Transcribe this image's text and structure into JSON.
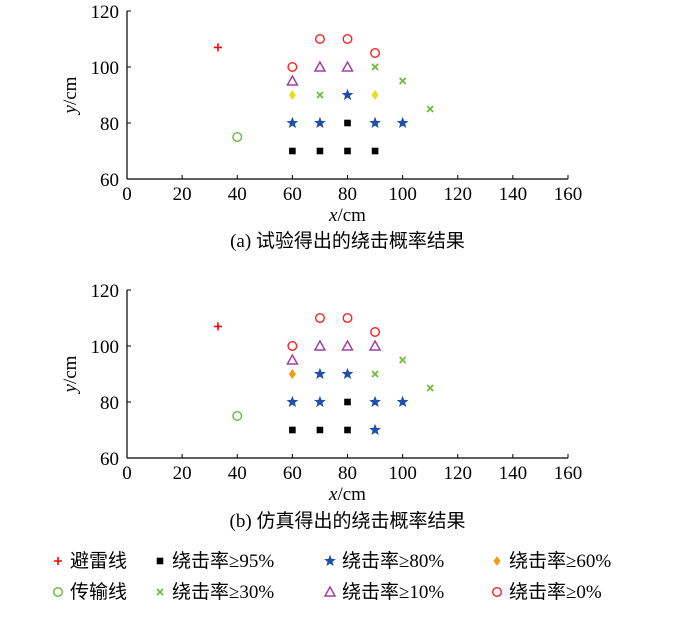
{
  "chart_data": [
    {
      "type": "scatter",
      "title": "(a)  试验得出的绕击概率结果",
      "xlabel": "x/cm",
      "ylabel": "y/cm",
      "xlim": [
        0,
        160
      ],
      "ylim": [
        60,
        120
      ],
      "xticks": [
        0,
        20,
        40,
        60,
        80,
        100,
        120,
        140,
        160
      ],
      "yticks": [
        60,
        80,
        100,
        120
      ],
      "series": [
        {
          "name": "避雷线",
          "marker": "plus",
          "color": "#ff0000",
          "points": [
            [
              33,
              107
            ]
          ]
        },
        {
          "name": "传输线",
          "marker": "circle",
          "color": "#66bb33",
          "points": [
            [
              40,
              75
            ]
          ]
        },
        {
          "name": "绕击率≥95%",
          "marker": "square",
          "color": "#000000",
          "points": [
            [
              60,
              70
            ],
            [
              70,
              70
            ],
            [
              80,
              70
            ],
            [
              90,
              70
            ],
            [
              80,
              80
            ]
          ]
        },
        {
          "name": "绕击率≥80%",
          "marker": "star",
          "color": "#1f4fa8",
          "points": [
            [
              60,
              80
            ],
            [
              70,
              80
            ],
            [
              90,
              80
            ],
            [
              100,
              80
            ],
            [
              80,
              90
            ]
          ]
        },
        {
          "name": "绕击率≥60%",
          "marker": "diamond",
          "color": "#e6e020",
          "points": [
            [
              60,
              90
            ],
            [
              90,
              90
            ]
          ]
        },
        {
          "name": "绕击率≥30%",
          "marker": "x",
          "color": "#66bb33",
          "points": [
            [
              70,
              90
            ],
            [
              90,
              100
            ],
            [
              100,
              95
            ],
            [
              110,
              85
            ]
          ]
        },
        {
          "name": "绕击率≥10%",
          "marker": "triangle",
          "color": "#a040a0",
          "points": [
            [
              60,
              95
            ],
            [
              70,
              100
            ],
            [
              80,
              100
            ]
          ]
        },
        {
          "name": "绕击率≥0%",
          "marker": "circle",
          "color": "#ff2020",
          "points": [
            [
              60,
              100
            ],
            [
              70,
              110
            ],
            [
              80,
              110
            ],
            [
              90,
              105
            ]
          ]
        }
      ]
    },
    {
      "type": "scatter",
      "title": "(b)  仿真得出的绕击概率结果",
      "xlabel": "x/cm",
      "ylabel": "y/cm",
      "xlim": [
        0,
        160
      ],
      "ylim": [
        60,
        120
      ],
      "xticks": [
        0,
        20,
        40,
        60,
        80,
        100,
        120,
        140,
        160
      ],
      "yticks": [
        60,
        80,
        100,
        120
      ],
      "series": [
        {
          "name": "避雷线",
          "marker": "plus",
          "color": "#ff0000",
          "points": [
            [
              33,
              107
            ]
          ]
        },
        {
          "name": "传输线",
          "marker": "circle",
          "color": "#66bb33",
          "points": [
            [
              40,
              75
            ]
          ]
        },
        {
          "name": "绕击率≥95%",
          "marker": "square",
          "color": "#000000",
          "points": [
            [
              60,
              70
            ],
            [
              70,
              70
            ],
            [
              80,
              70
            ],
            [
              80,
              80
            ]
          ]
        },
        {
          "name": "绕击率≥80%",
          "marker": "star",
          "color": "#1f4fa8",
          "points": [
            [
              60,
              80
            ],
            [
              70,
              80
            ],
            [
              90,
              80
            ],
            [
              100,
              80
            ],
            [
              70,
              90
            ],
            [
              80,
              90
            ],
            [
              90,
              70
            ]
          ]
        },
        {
          "name": "绕击率≥60%",
          "marker": "diamond",
          "color": "#f39a1a",
          "points": [
            [
              60,
              90
            ]
          ]
        },
        {
          "name": "绕击率≥30%",
          "marker": "x",
          "color": "#66bb33",
          "points": [
            [
              90,
              90
            ],
            [
              100,
              95
            ],
            [
              110,
              85
            ]
          ]
        },
        {
          "name": "绕击率≥10%",
          "marker": "triangle",
          "color": "#a040a0",
          "points": [
            [
              60,
              95
            ],
            [
              70,
              100
            ],
            [
              80,
              100
            ],
            [
              90,
              100
            ]
          ]
        },
        {
          "name": "绕击率≥0%",
          "marker": "circle",
          "color": "#ff2020",
          "points": [
            [
              60,
              100
            ],
            [
              70,
              110
            ],
            [
              80,
              110
            ],
            [
              90,
              105
            ]
          ]
        }
      ]
    }
  ],
  "legend": [
    {
      "label": "避雷线",
      "marker": "plus",
      "color": "#ff0000"
    },
    {
      "label": "绕击率≥95%",
      "marker": "square",
      "color": "#000000"
    },
    {
      "label": "绕击率≥80%",
      "marker": "star",
      "color": "#1f4fa8"
    },
    {
      "label": "绕击率≥60%",
      "marker": "diamond",
      "color": "#f39a1a"
    },
    {
      "label": "传输线",
      "marker": "circle",
      "color": "#66bb33"
    },
    {
      "label": "绕击率≥30%",
      "marker": "x",
      "color": "#66bb33"
    },
    {
      "label": "绕击率≥10%",
      "marker": "triangle",
      "color": "#a040a0"
    },
    {
      "label": "绕击率≥0%",
      "marker": "circle",
      "color": "#ff2020"
    }
  ]
}
